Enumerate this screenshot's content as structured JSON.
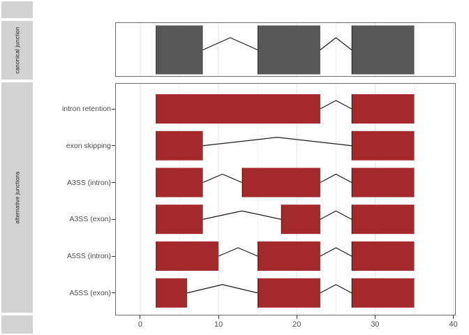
{
  "chart_data": {
    "type": "bar",
    "subtype": "splice-junction-exon-structure",
    "title": "",
    "xlabel": "",
    "ylabel": "",
    "xlim": [
      -3.2,
      40.3
    ],
    "grid": true,
    "legend": "none",
    "x_ticks": [
      {
        "value": 0,
        "label": "0"
      },
      {
        "value": 10,
        "label": "10"
      },
      {
        "value": 20,
        "label": "20"
      },
      {
        "value": 30,
        "label": "30"
      },
      {
        "value": 40,
        "label": "40"
      }
    ],
    "x_minor_gridlines": [
      5,
      15,
      25,
      35
    ],
    "facets": [
      {
        "strip_label": "canonical junction",
        "exon_fill": "#575757",
        "rows": [
          {
            "label": "",
            "exons": [
              [
                2,
                8
              ],
              [
                15,
                23
              ],
              [
                27,
                35
              ]
            ],
            "junctions": [
              [
                8,
                15
              ],
              [
                23,
                27
              ]
            ]
          }
        ]
      },
      {
        "strip_label": "alternative junctions",
        "exon_fill": "#A3292B",
        "rows": [
          {
            "label": "intron retention",
            "exons": [
              [
                2,
                23
              ],
              [
                27,
                35
              ]
            ],
            "junctions": [
              [
                23,
                27
              ]
            ]
          },
          {
            "label": "exon skipping",
            "exons": [
              [
                2,
                8
              ],
              [
                27,
                35
              ]
            ],
            "junctions": [
              [
                8,
                27
              ]
            ]
          },
          {
            "label": "A3SS (intron)",
            "exons": [
              [
                2,
                8
              ],
              [
                13,
                23
              ],
              [
                27,
                35
              ]
            ],
            "junctions": [
              [
                8,
                13
              ],
              [
                23,
                27
              ]
            ]
          },
          {
            "label": "A3SS (exon)",
            "exons": [
              [
                2,
                8
              ],
              [
                18,
                23
              ],
              [
                27,
                35
              ]
            ],
            "junctions": [
              [
                8,
                18
              ],
              [
                23,
                27
              ]
            ]
          },
          {
            "label": "A5SS (intron)",
            "exons": [
              [
                2,
                10
              ],
              [
                15,
                23
              ],
              [
                27,
                35
              ]
            ],
            "junctions": [
              [
                10,
                15
              ],
              [
                23,
                27
              ]
            ]
          },
          {
            "label": "A5SS (exon)",
            "exons": [
              [
                2,
                6
              ],
              [
                15,
                23
              ],
              [
                27,
                35
              ]
            ],
            "junctions": [
              [
                6,
                15
              ],
              [
                23,
                27
              ]
            ]
          }
        ]
      }
    ],
    "colors": {
      "canonical_exon": "#575757",
      "alternative_exon": "#A3292B",
      "exon_left_edge": "#222222",
      "junction_line": "#1A1A1A",
      "strip_background": "#D3D3D3",
      "strip_text": "#1A1A1A",
      "panel_border": "#6B6B6B",
      "panel_background": "#FFFFFF",
      "grid_major": "#E4E4E4",
      "grid_minor": "#F1F1F1",
      "axis_text": "#4D4D4D",
      "tick_mark": "#333333"
    }
  }
}
